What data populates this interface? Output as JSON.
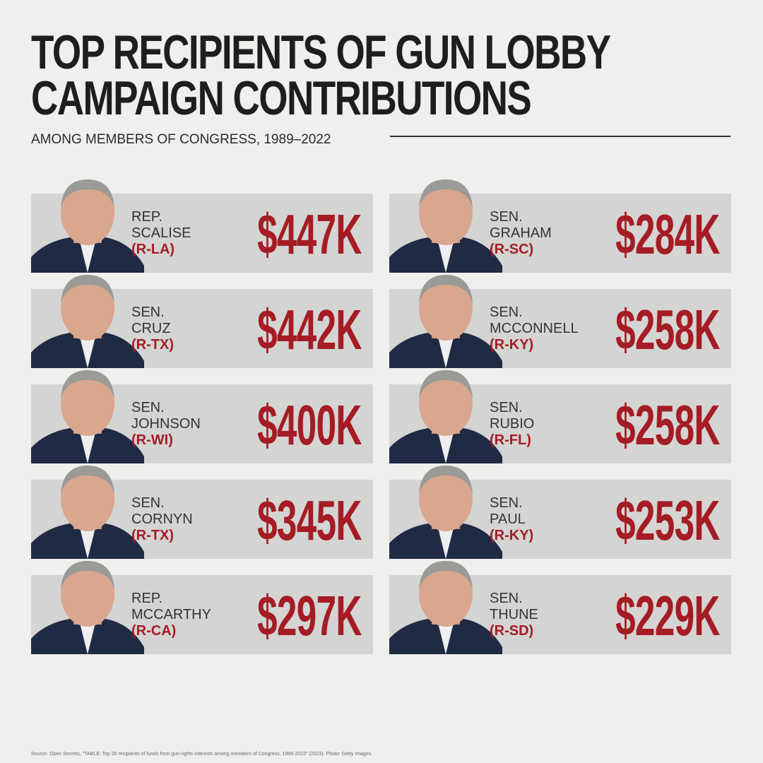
{
  "header": {
    "title_lines": [
      "TOP RECIPIENTS OF GUN LOBBY",
      "CAMPAIGN CONTRIBUTIONS"
    ],
    "subtitle": "AMONG MEMBERS OF CONGRESS, 1989–2022"
  },
  "cards": [
    {
      "title": "REP.",
      "name": "SCALISE",
      "party": "(R-LA)",
      "amount": "$447K"
    },
    {
      "title": "SEN.",
      "name": "GRAHAM",
      "party": "(R-SC)",
      "amount": "$284K"
    },
    {
      "title": "SEN.",
      "name": "CRUZ",
      "party": "(R-TX)",
      "amount": "$442K"
    },
    {
      "title": "SEN.",
      "name": "MCCONNELL",
      "party": "(R-KY)",
      "amount": "$258K"
    },
    {
      "title": "SEN.",
      "name": "JOHNSON",
      "party": "(R-WI)",
      "amount": "$400K"
    },
    {
      "title": "SEN.",
      "name": "RUBIO",
      "party": "(R-FL)",
      "amount": "$258K"
    },
    {
      "title": "SEN.",
      "name": "CORNYN",
      "party": "(R-TX)",
      "amount": "$345K"
    },
    {
      "title": "SEN.",
      "name": "PAUL",
      "party": "(R-KY)",
      "amount": "$253K"
    },
    {
      "title": "REP.",
      "name": "MCCARTHY",
      "party": "(R-CA)",
      "amount": "$297K"
    },
    {
      "title": "SEN.",
      "name": "THUNE",
      "party": "(R-SD)",
      "amount": "$229K"
    }
  ],
  "source": "Source: Open Secrets, \"TABLE: Top 20 recipients of funds from gun rights interests among members of Congress, 1989-2022\" (2023). Photo: Getty Images."
}
